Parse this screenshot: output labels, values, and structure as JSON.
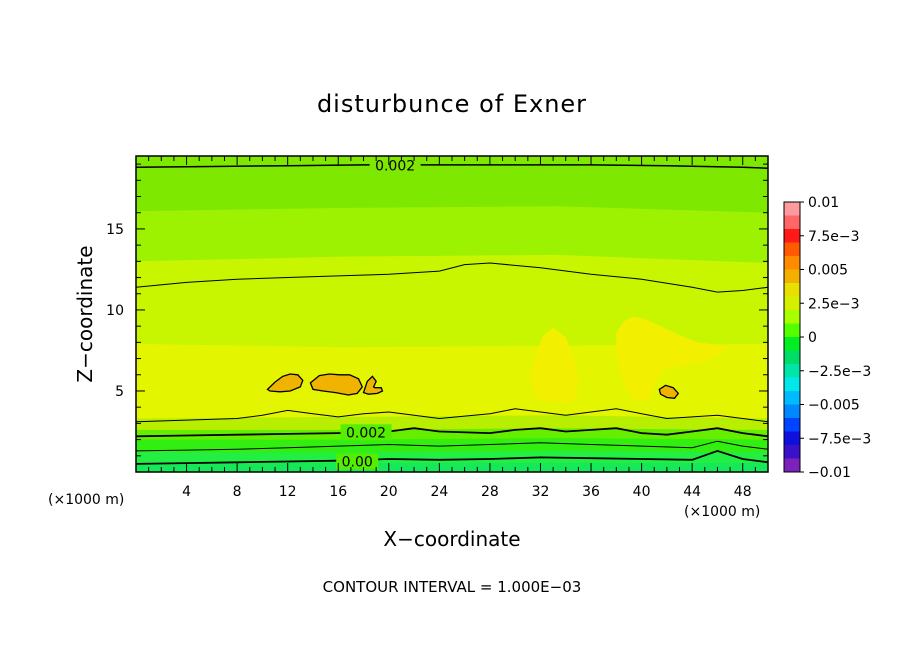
{
  "chart_data": {
    "type": "heatmap",
    "title": "disturbunce of Exner",
    "xlabel": "X−coordinate",
    "ylabel": "Z−coordinate",
    "x_unit": "(×1000 m)",
    "y_unit": "(×1000 m)",
    "xlim": [
      0,
      50
    ],
    "ylim": [
      0,
      19.5
    ],
    "x_ticks": [
      4,
      8,
      12,
      16,
      20,
      24,
      28,
      32,
      36,
      40,
      44,
      48
    ],
    "x_tick_labels": [
      "4",
      "8",
      "12",
      "16",
      "20",
      "24",
      "28",
      "32",
      "36",
      "40",
      "44",
      "48"
    ],
    "y_ticks": [
      5,
      10,
      15
    ],
    "y_tick_labels": [
      "5",
      "10",
      "15"
    ],
    "colorbar": {
      "levels": [
        0.01,
        0.0075,
        0.005,
        0.0025,
        0,
        -0.0025,
        -0.005,
        -0.0075,
        -0.01
      ],
      "labels": [
        "0.01",
        "7.5e−3",
        "0.005",
        "2.5e−3",
        "0",
        "−2.5e−3",
        "−0.005",
        "−7.5e−3",
        "−0.01"
      ],
      "colors": [
        "#ff9aa0",
        "#ff6666",
        "#ff1a1a",
        "#ff5a00",
        "#ff8c00",
        "#f4b000",
        "#e8e000",
        "#d4f000",
        "#a8ff00",
        "#54ff00",
        "#00ee22",
        "#00dd66",
        "#00e6aa",
        "#00e8e8",
        "#00bbff",
        "#0088ff",
        "#0044ff",
        "#1010dd",
        "#3a10c8",
        "#7a22bb"
      ]
    },
    "bands": [
      {
        "upper_z": [
          19.5,
          19.5,
          19.5,
          19.5
        ],
        "color": "#7ee800"
      },
      {
        "upper_z": [
          16.1,
          16.3,
          16.4,
          16.0
        ],
        "color": "#9cf200"
      },
      {
        "upper_z": [
          13.0,
          13.3,
          13.4,
          12.9
        ],
        "color": "#c8f500"
      },
      {
        "upper_z": [
          7.9,
          7.7,
          7.8,
          7.9
        ],
        "color": "#e4f500"
      },
      {
        "upper_z": [
          3.3,
          3.4,
          3.5,
          3.3
        ],
        "color": "#b8ee00"
      },
      {
        "upper_z": [
          2.6,
          2.6,
          2.7,
          2.6
        ],
        "color": "#66ee00"
      },
      {
        "upper_z": [
          2.0,
          2.0,
          2.1,
          2.0
        ],
        "color": "#33ee11"
      },
      {
        "upper_z": [
          1.2,
          1.2,
          1.3,
          1.2
        ],
        "color": "#22ee44"
      }
    ],
    "contours": [
      {
        "x": [
          0,
          6,
          12,
          18,
          24,
          30,
          36,
          42,
          48,
          50
        ],
        "z": [
          18.8,
          18.85,
          18.9,
          18.95,
          18.95,
          18.95,
          18.95,
          18.9,
          18.8,
          18.75
        ],
        "width": 1.5
      },
      {
        "x": [
          0,
          4,
          8,
          12,
          16,
          20,
          24,
          26,
          28,
          32,
          36,
          40,
          44,
          46,
          48,
          50
        ],
        "z": [
          11.4,
          11.7,
          11.9,
          12.0,
          12.1,
          12.2,
          12.4,
          12.8,
          12.9,
          12.6,
          12.2,
          11.9,
          11.4,
          11.1,
          11.2,
          11.4
        ],
        "width": 1.0
      },
      {
        "x": [
          0,
          4,
          8,
          10,
          12,
          14,
          16,
          18,
          20,
          22,
          24,
          28,
          30,
          32,
          34,
          36,
          38,
          40,
          42,
          44,
          46,
          48,
          50
        ],
        "z": [
          3.1,
          3.2,
          3.3,
          3.5,
          3.8,
          3.6,
          3.4,
          3.6,
          3.7,
          3.5,
          3.3,
          3.6,
          3.9,
          3.7,
          3.5,
          3.7,
          3.9,
          3.6,
          3.3,
          3.4,
          3.5,
          3.3,
          3.1
        ],
        "width": 1.0
      },
      {
        "x": [
          0,
          4,
          8,
          12,
          16,
          20,
          22,
          24,
          28,
          30,
          32,
          34,
          36,
          38,
          40,
          42,
          44,
          46,
          48,
          50
        ],
        "z": [
          2.2,
          2.25,
          2.3,
          2.35,
          2.4,
          2.5,
          2.7,
          2.5,
          2.4,
          2.6,
          2.7,
          2.5,
          2.6,
          2.7,
          2.4,
          2.3,
          2.5,
          2.7,
          2.4,
          2.2
        ],
        "width": 1.8
      },
      {
        "x": [
          0,
          4,
          8,
          12,
          16,
          20,
          24,
          28,
          32,
          36,
          40,
          44,
          46,
          48,
          50
        ],
        "z": [
          1.3,
          1.35,
          1.4,
          1.5,
          1.6,
          1.7,
          1.6,
          1.7,
          1.8,
          1.7,
          1.6,
          1.5,
          1.9,
          1.6,
          1.4
        ],
        "width": 1.0
      },
      {
        "x": [
          0,
          4,
          8,
          12,
          16,
          20,
          24,
          28,
          32,
          36,
          40,
          44,
          46,
          48,
          50
        ],
        "z": [
          0.5,
          0.55,
          0.6,
          0.65,
          0.7,
          0.8,
          0.75,
          0.8,
          0.9,
          0.85,
          0.8,
          0.75,
          1.3,
          0.8,
          0.6
        ],
        "width": 1.8
      }
    ],
    "contour_labels": [
      {
        "text": "0.002",
        "x": 20.5,
        "z": 18.9
      },
      {
        "text": "0.002",
        "x": 18.2,
        "z": 2.45
      },
      {
        "text": "0.00",
        "x": 17.5,
        "z": 0.65
      }
    ],
    "highlight_regions": [
      {
        "x": [
          31.5,
          32.6,
          33.4,
          34.2,
          34.8,
          35.0,
          34.6,
          34.0,
          33.0,
          32.2,
          31.6,
          31.2
        ],
        "z": [
          4.6,
          4.3,
          4.4,
          4.2,
          4.6,
          5.6,
          7.2,
          8.3,
          8.9,
          8.4,
          7.2,
          5.8
        ],
        "color": "#f2f000"
      },
      {
        "x": [
          38.0,
          38.6,
          39.4,
          40.4,
          41.5,
          42.6,
          43.4,
          44.4,
          45.5,
          46.8,
          46.5,
          45.0,
          43.4,
          41.8,
          41.0,
          40.8,
          40.2,
          39.4,
          38.6,
          38.0
        ],
        "z": [
          8.6,
          9.3,
          9.6,
          9.4,
          9.0,
          8.6,
          8.3,
          8.0,
          7.9,
          7.8,
          7.4,
          6.8,
          6.6,
          6.4,
          5.6,
          4.6,
          4.4,
          4.5,
          5.4,
          7.4
        ],
        "color": "#f2f000"
      }
    ],
    "closed_contours": [
      {
        "x": [
          10.4,
          11.0,
          11.6,
          12.2,
          12.8,
          13.2,
          13.0,
          12.2,
          11.4,
          10.6
        ],
        "z": [
          5.1,
          5.55,
          5.9,
          6.05,
          6.0,
          5.65,
          5.25,
          5.0,
          4.95,
          5.0
        ]
      },
      {
        "x": [
          13.8,
          14.5,
          15.3,
          16.1,
          16.9,
          17.6,
          17.9,
          17.5,
          16.8,
          15.8,
          14.8,
          14.0
        ],
        "z": [
          5.5,
          5.95,
          6.05,
          6.0,
          6.0,
          5.75,
          5.25,
          4.85,
          4.75,
          4.9,
          5.0,
          5.1
        ]
      },
      {
        "x": [
          18.0,
          18.3,
          18.7,
          19.0,
          18.8,
          18.9,
          19.4,
          19.5,
          19.1,
          18.4,
          18.0
        ],
        "z": [
          4.9,
          5.6,
          5.9,
          5.6,
          5.25,
          5.2,
          5.2,
          5.0,
          4.85,
          4.8,
          4.9
        ]
      },
      {
        "x": [
          41.4,
          41.9,
          42.5,
          42.9,
          42.6,
          42.0,
          41.5
        ],
        "z": [
          5.1,
          5.35,
          5.2,
          4.85,
          4.55,
          4.6,
          4.8
        ]
      }
    ],
    "legend_position": "right",
    "annotation": "CONTOUR INTERVAL = 1.000E−03"
  }
}
